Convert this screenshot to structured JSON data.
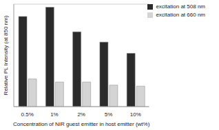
{
  "chart_data": {
    "type": "bar",
    "x_label": "Concentration of NIR guest emitter in host emitter (wt%)",
    "y_label": "Relative PL Intensity (at 850 nm)",
    "categories": [
      "0.5%",
      "1%",
      "2%",
      "5%",
      "10%"
    ],
    "series": [
      {
        "name": "excitation at 508 nm",
        "color": "#2b2b2b",
        "values": [
          0.88,
          0.97,
          0.73,
          0.63,
          0.52
        ]
      },
      {
        "name": "excitation at 660 nm",
        "color": "#d4d4d4",
        "values": [
          0.27,
          0.24,
          0.24,
          0.21,
          0.2
        ]
      }
    ],
    "ylim": [
      0,
      1
    ],
    "yticks": [
      0,
      0.2,
      0.4,
      0.6,
      0.8,
      1
    ],
    "grid": true,
    "legend": "upper right",
    "tick_labels": "x"
  }
}
